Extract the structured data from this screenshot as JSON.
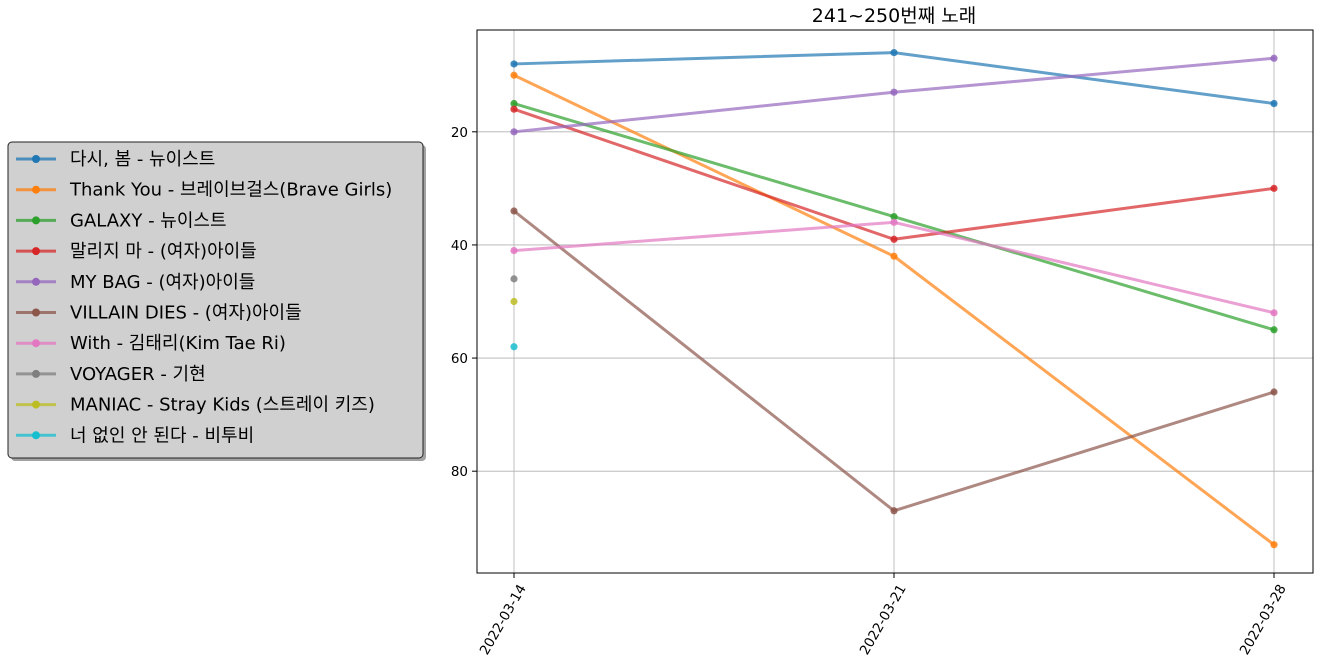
{
  "chart_data": {
    "type": "line",
    "title": "241~250번째 노래",
    "xlabel": "",
    "ylabel": "",
    "x": [
      "2022-03-14",
      "2022-03-21",
      "2022-03-28"
    ],
    "y_inverted": true,
    "ylim": [
      98,
      2
    ],
    "yticks": [
      20,
      40,
      60,
      80
    ],
    "grid": true,
    "legend_position": "left",
    "series": [
      {
        "name": "다시, 봄 - 뉴이스트",
        "color": "#1f77b4",
        "values": [
          8,
          6,
          15
        ]
      },
      {
        "name": "Thank You - 브레이브걸스(Brave Girls)",
        "color": "#ff7f0e",
        "values": [
          10,
          42,
          93
        ]
      },
      {
        "name": "GALAXY - 뉴이스트",
        "color": "#2ca02c",
        "values": [
          15,
          35,
          55
        ]
      },
      {
        "name": "말리지 마 - (여자)아이들",
        "color": "#d62728",
        "values": [
          16,
          39,
          30
        ]
      },
      {
        "name": "MY BAG - (여자)아이들",
        "color": "#9467bd",
        "values": [
          20,
          13,
          7
        ]
      },
      {
        "name": "VILLAIN DIES - (여자)아이들",
        "color": "#8c564b",
        "values": [
          34,
          87,
          66
        ]
      },
      {
        "name": "With - 김태리(Kim Tae Ri)",
        "color": "#e377c2",
        "values": [
          41,
          36,
          52
        ]
      },
      {
        "name": "VOYAGER - 기현",
        "color": "#7f7f7f",
        "values": [
          46,
          null,
          null
        ]
      },
      {
        "name": "MANIAC - Stray Kids (스트레이 키즈)",
        "color": "#bcbd22",
        "values": [
          50,
          null,
          null
        ]
      },
      {
        "name": "너 없인 안 된다 - 비투비",
        "color": "#17becf",
        "values": [
          58,
          null,
          null
        ]
      }
    ]
  }
}
